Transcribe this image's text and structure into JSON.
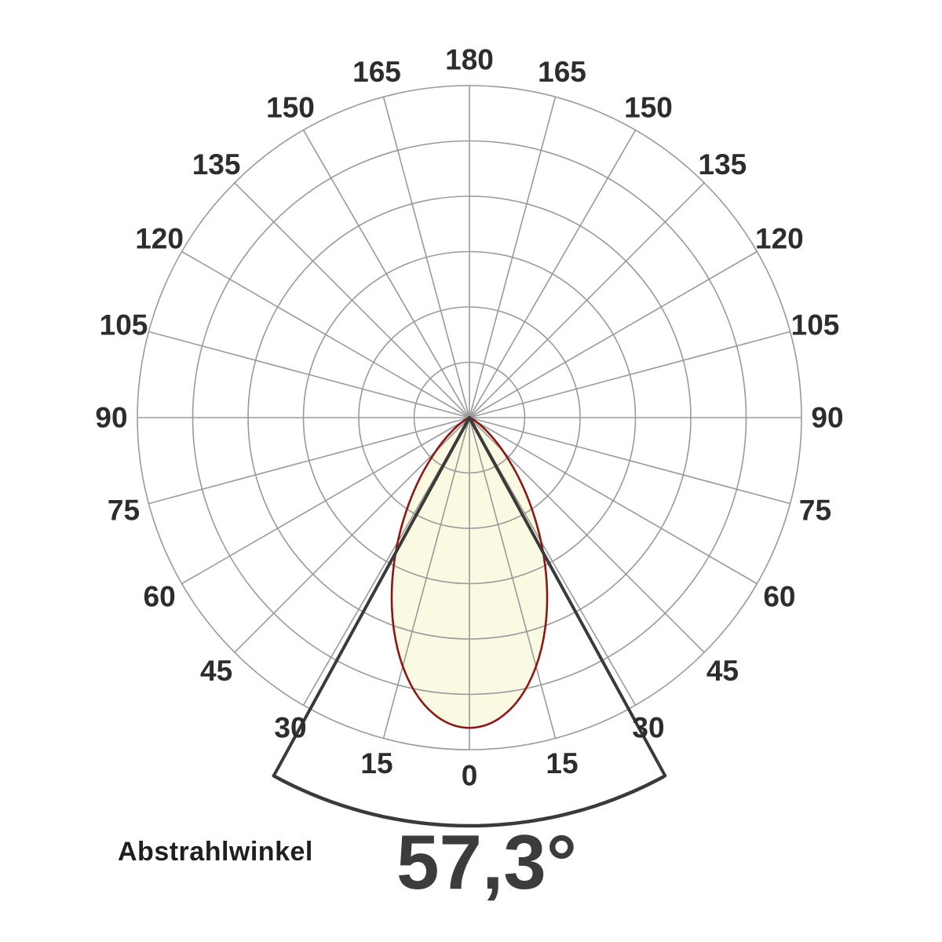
{
  "page": {
    "background": "#ffffff"
  },
  "footer": {
    "label": "Abstrahlwinkel",
    "value": "57,3°"
  },
  "colors": {
    "grid": "#9a9a9a",
    "lobe_fill": "#faf9e2",
    "lobe_stroke": "#8e1616",
    "beam_lines": "#3a3a3a",
    "arc": "#3a3a3a",
    "label_text": "#2d2d2d"
  },
  "chart_data": {
    "type": "polar",
    "subtype": "light-distribution-curve",
    "title": "",
    "beam_angle_label": "Abstrahlwinkel",
    "beam_angle_deg": 57.3,
    "beam_angle_display": "57,3°",
    "beam_half_angle_deg": 28.65,
    "angle_tick_labels_deg": [
      0,
      15,
      30,
      45,
      60,
      75,
      90,
      105,
      120,
      135,
      150,
      165,
      180
    ],
    "angle_tick_step_deg": 15,
    "ring_count": 6,
    "ray_step_deg": 15,
    "max_radius_relative": 0.94,
    "series": [
      {
        "name": "relative-luminous-intensity",
        "angles_deg": [
          -80,
          -75,
          -70,
          -65,
          -60,
          -55,
          -50,
          -45,
          -40,
          -35,
          -30,
          -25,
          -20,
          -15,
          -10,
          -5,
          0,
          5,
          10,
          15,
          20,
          25,
          30,
          35,
          40,
          45,
          50,
          55,
          60,
          65,
          70,
          75,
          80
        ],
        "relative_intensity": [
          0.0,
          0.001,
          0.003,
          0.01,
          0.025,
          0.052,
          0.096,
          0.159,
          0.244,
          0.347,
          0.467,
          0.594,
          0.719,
          0.832,
          0.922,
          0.98,
          1.0,
          0.98,
          0.922,
          0.832,
          0.719,
          0.594,
          0.467,
          0.347,
          0.244,
          0.159,
          0.096,
          0.052,
          0.025,
          0.01,
          0.003,
          0.001,
          0.0
        ]
      }
    ]
  }
}
